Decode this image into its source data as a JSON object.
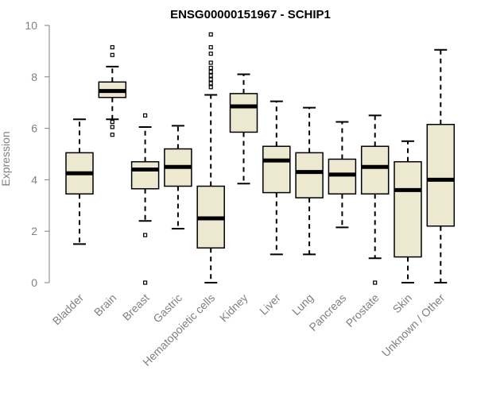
{
  "chart_data": {
    "type": "boxplot",
    "title": "ENSG00000151967 - SCHIP1",
    "xlabel": "",
    "ylabel": "Expression",
    "ylim": [
      0,
      10
    ],
    "yticks": [
      0,
      2,
      4,
      6,
      8,
      10
    ],
    "grid": false,
    "box_color": "#ede8d0",
    "median_color": "#000000",
    "categories": [
      "Bladder",
      "Brain",
      "Breast",
      "Gastric",
      "Hematopoietic cells",
      "Kidney",
      "Liver",
      "Lung",
      "Pancreas",
      "Prostate",
      "Skin",
      "Unknown / Other"
    ],
    "boxes": [
      {
        "label": "Bladder",
        "whisker_low": 1.5,
        "q1": 3.45,
        "median": 4.25,
        "q3": 5.05,
        "whisker_high": 6.35,
        "outliers": []
      },
      {
        "label": "Brain",
        "whisker_low": 6.35,
        "q1": 7.2,
        "median": 7.45,
        "q3": 7.8,
        "whisker_high": 8.4,
        "outliers": [
          5.75,
          6.05,
          6.25,
          8.85,
          9.15
        ]
      },
      {
        "label": "Breast",
        "whisker_low": 2.4,
        "q1": 3.65,
        "median": 4.4,
        "q3": 4.7,
        "whisker_high": 6.05,
        "outliers": [
          0.0,
          1.85,
          6.5
        ]
      },
      {
        "label": "Gastric",
        "whisker_low": 2.1,
        "q1": 3.75,
        "median": 4.5,
        "q3": 5.2,
        "whisker_high": 6.1,
        "outliers": []
      },
      {
        "label": "Hematopoietic cells",
        "whisker_low": 0.0,
        "q1": 1.35,
        "median": 2.5,
        "q3": 3.75,
        "whisker_high": 7.3,
        "outliers": [
          7.6,
          7.75,
          7.9,
          8.05,
          8.2,
          8.35,
          8.55,
          8.9,
          9.15,
          9.65
        ]
      },
      {
        "label": "Kidney",
        "whisker_low": 3.85,
        "q1": 5.85,
        "median": 6.85,
        "q3": 7.35,
        "whisker_high": 8.1,
        "outliers": []
      },
      {
        "label": "Liver",
        "whisker_low": 1.1,
        "q1": 3.5,
        "median": 4.75,
        "q3": 5.3,
        "whisker_high": 7.05,
        "outliers": []
      },
      {
        "label": "Lung",
        "whisker_low": 1.1,
        "q1": 3.3,
        "median": 4.3,
        "q3": 5.05,
        "whisker_high": 6.8,
        "outliers": []
      },
      {
        "label": "Pancreas",
        "whisker_low": 2.15,
        "q1": 3.45,
        "median": 4.2,
        "q3": 4.8,
        "whisker_high": 6.25,
        "outliers": []
      },
      {
        "label": "Prostate",
        "whisker_low": 0.95,
        "q1": 3.45,
        "median": 4.5,
        "q3": 5.3,
        "whisker_high": 6.5,
        "outliers": [
          0.0
        ]
      },
      {
        "label": "Skin",
        "whisker_low": 0.0,
        "q1": 1.0,
        "median": 3.6,
        "q3": 4.7,
        "whisker_high": 5.5,
        "outliers": []
      },
      {
        "label": "Unknown / Other",
        "whisker_low": 0.0,
        "q1": 2.2,
        "median": 4.0,
        "q3": 6.15,
        "whisker_high": 9.05,
        "outliers": []
      }
    ]
  }
}
